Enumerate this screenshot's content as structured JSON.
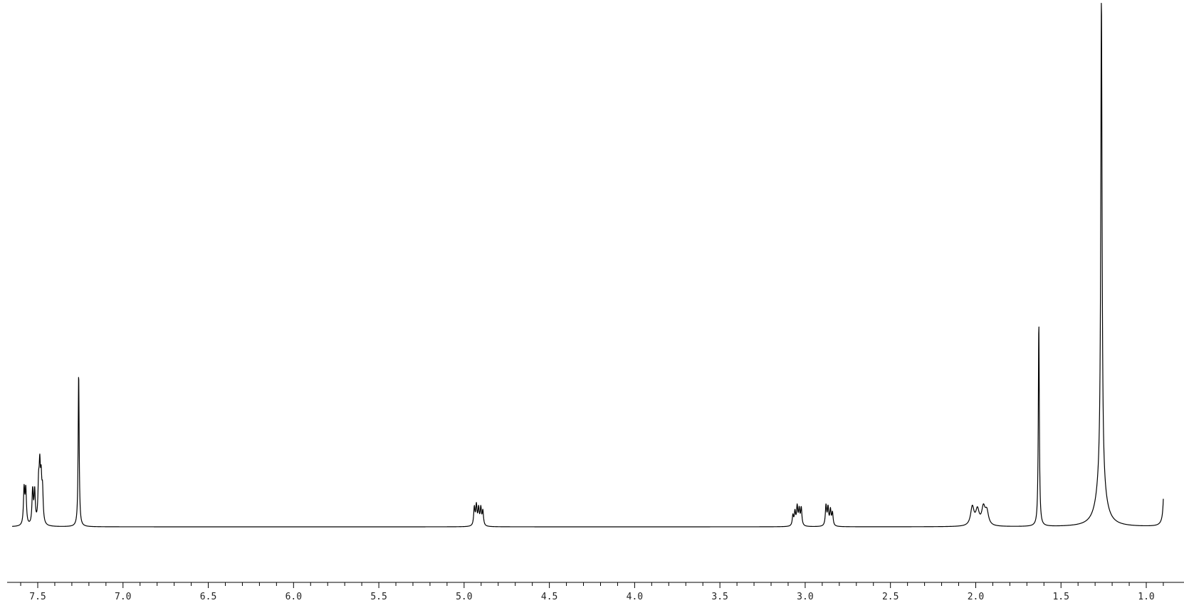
{
  "chart_data": {
    "type": "line",
    "title": "",
    "xlabel": "",
    "ylabel": "",
    "x_reversed": true,
    "xlim": [
      7.65,
      0.9
    ],
    "ylim": [
      0,
      1.0
    ],
    "grid": false,
    "legend": "none",
    "line_color": "#000000",
    "x_ticks": [
      {
        "value": 7.5,
        "label": "7.5"
      },
      {
        "value": 7.0,
        "label": "7.0"
      },
      {
        "value": 6.5,
        "label": "6.5"
      },
      {
        "value": 6.0,
        "label": "6.0"
      },
      {
        "value": 5.5,
        "label": "5.5"
      },
      {
        "value": 5.0,
        "label": "5.0"
      },
      {
        "value": 4.5,
        "label": "4.5"
      },
      {
        "value": 4.0,
        "label": "4.0"
      },
      {
        "value": 3.5,
        "label": "3.5"
      },
      {
        "value": 3.0,
        "label": "3.0"
      },
      {
        "value": 2.5,
        "label": "2.5"
      },
      {
        "value": 2.0,
        "label": "2.0"
      },
      {
        "value": 1.5,
        "label": "1.5"
      },
      {
        "value": 1.0,
        "label": "1.0"
      }
    ],
    "minor_tick_step": 0.1,
    "peaks": [
      {
        "x": 7.58,
        "h": 0.069,
        "w": 0.0045
      },
      {
        "x": 7.57,
        "h": 0.067,
        "w": 0.0045
      },
      {
        "x": 7.53,
        "h": 0.066,
        "w": 0.0045
      },
      {
        "x": 7.518,
        "h": 0.063,
        "w": 0.0045
      },
      {
        "x": 7.495,
        "h": 0.068,
        "w": 0.0045
      },
      {
        "x": 7.488,
        "h": 0.096,
        "w": 0.0045
      },
      {
        "x": 7.48,
        "h": 0.075,
        "w": 0.0045
      },
      {
        "x": 7.472,
        "h": 0.06,
        "w": 0.0045
      },
      {
        "x": 7.26,
        "h": 0.296,
        "w": 0.0035
      },
      {
        "x": 4.94,
        "h": 0.035,
        "w": 0.0045
      },
      {
        "x": 4.928,
        "h": 0.038,
        "w": 0.0045
      },
      {
        "x": 4.915,
        "h": 0.032,
        "w": 0.0045
      },
      {
        "x": 4.902,
        "h": 0.033,
        "w": 0.0045
      },
      {
        "x": 4.89,
        "h": 0.028,
        "w": 0.0045
      },
      {
        "x": 3.072,
        "h": 0.02,
        "w": 0.0045
      },
      {
        "x": 3.06,
        "h": 0.026,
        "w": 0.0045
      },
      {
        "x": 3.047,
        "h": 0.036,
        "w": 0.0045
      },
      {
        "x": 3.035,
        "h": 0.03,
        "w": 0.0045
      },
      {
        "x": 3.023,
        "h": 0.034,
        "w": 0.0045
      },
      {
        "x": 2.878,
        "h": 0.039,
        "w": 0.0045
      },
      {
        "x": 2.866,
        "h": 0.034,
        "w": 0.0045
      },
      {
        "x": 2.852,
        "h": 0.03,
        "w": 0.0045
      },
      {
        "x": 2.84,
        "h": 0.025,
        "w": 0.0045
      },
      {
        "x": 2.02,
        "h": 0.036,
        "w": 0.012
      },
      {
        "x": 1.99,
        "h": 0.029,
        "w": 0.012
      },
      {
        "x": 1.955,
        "h": 0.033,
        "w": 0.012
      },
      {
        "x": 1.935,
        "h": 0.026,
        "w": 0.012
      },
      {
        "x": 1.63,
        "h": 0.392,
        "w": 0.0035
      },
      {
        "x": 1.263,
        "h": 0.93,
        "w": 0.0045
      },
      {
        "x": 1.265,
        "h": 0.09,
        "w": 0.03
      },
      {
        "x": 0.892,
        "h": 0.17,
        "w": 0.004
      },
      {
        "x": 0.885,
        "h": 0.23,
        "w": 0.004
      },
      {
        "x": 0.876,
        "h": 0.15,
        "w": 0.004
      }
    ]
  }
}
